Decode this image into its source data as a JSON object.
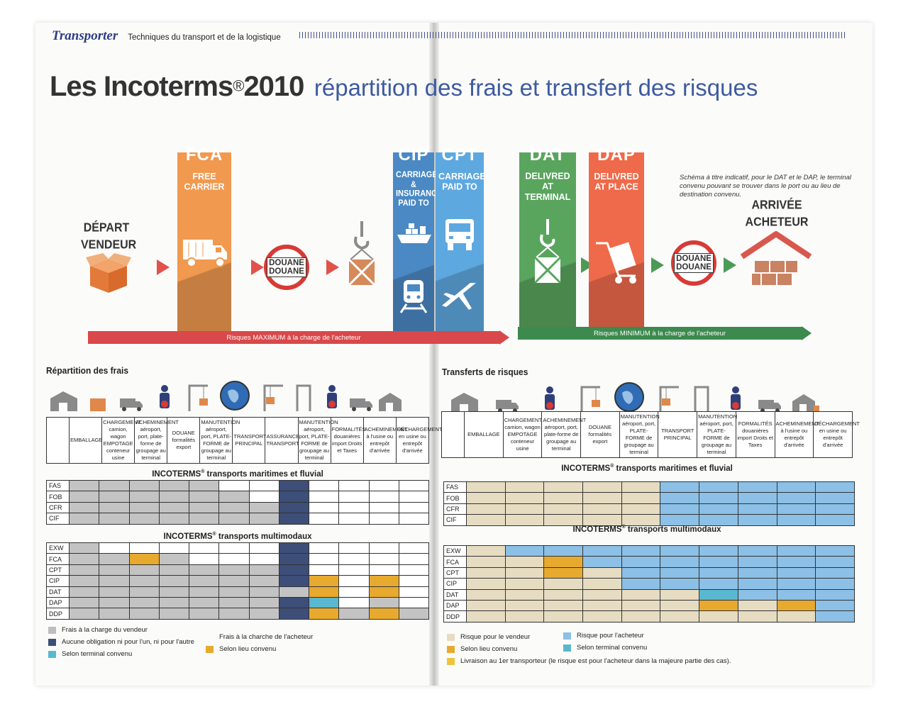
{
  "magazine": {
    "name": "Transporter",
    "section": "Techniques du transport et de la logistique"
  },
  "headline": {
    "main": "Les Incoterms",
    "reg": "®",
    "year": "2010",
    "sub": "répartition des frais et transfert des risques"
  },
  "terms": [
    {
      "code": "FCA",
      "full": "FREE CARRIER",
      "color": "#f0994f"
    },
    {
      "code": "CIP",
      "full": "CARRIAGE & INSURANCE PAID TO",
      "color": "#4a89c4"
    },
    {
      "code": "CPT",
      "full": "CARRIAGE PAID TO",
      "color": "#5ea8e0"
    },
    {
      "code": "DAT",
      "full": "DELIVRED AT TERMINAL",
      "color": "#5aa55e"
    },
    {
      "code": "DAP",
      "full": "DELIVRED AT PLACE",
      "color": "#ef6a4a"
    }
  ],
  "parties": {
    "depart": "DÉPART VENDEUR",
    "arrivee": "ARRIVÉE ACHETEUR"
  },
  "douane_label": "DOUANE DOUANE",
  "note": "Schéma à titre indicatif, pour le DAT et le DAP, le terminal convenu pouvant se trouver dans le port ou au lieu de destination convenu.",
  "risk_bars": {
    "maximum": "Risques MAXIMUM à la charge de l'acheteur",
    "minimum": "Risques MINIMUM à la charge de l'acheteur"
  },
  "icons": [
    "box-icon",
    "truck-icon",
    "crane-hook-icon",
    "ship-icon",
    "truck-front-icon",
    "train-icon",
    "plane-icon",
    "trolley-icon",
    "warehouse-icon",
    "globe-transports-icon",
    "customs-officer-icon"
  ],
  "frais": {
    "title": "Répartition des frais",
    "headers": [
      "",
      "EMBALLAGE",
      "CHARGEMENT camion, wagon EMPOTAGE conteneur usine",
      "ACHEMINEMENT aéroport, port, plate-forme de groupage au terminal",
      "DOUANE formalités export",
      "MANUTENTION aéroport, port, PLATE-FORME de groupage au terminal",
      "TRANSPORT PRINCIPAL",
      "ASSURANCE TRANSPORT",
      "MANUTENTION aéroport, port, PLATE-FORME de groupage au terminal",
      "FORMALITÉS douanières import Droits et Taxes",
      "ACHEMINEMENT à l'usine ou entrepôt d'arrivée",
      "DÉCHARGEMENT en usine ou entrepôt d'arrivée"
    ],
    "group_maritime": "INCOTERMS",
    "group_maritime_rest": " transports maritimes et fluvial",
    "group_multi": "INCOTERMS",
    "group_multi_rest": " transports multimodaux",
    "maritime_rows": [
      {
        "code": "FAS",
        "cells": [
          "g",
          "g",
          "g",
          "g",
          "g",
          "w",
          "w",
          "n",
          "w",
          "w",
          "w",
          "w"
        ]
      },
      {
        "code": "FOB",
        "cells": [
          "g",
          "g",
          "g",
          "g",
          "g",
          "g",
          "w",
          "n",
          "w",
          "w",
          "w",
          "w"
        ]
      },
      {
        "code": "CFR",
        "cells": [
          "g",
          "g",
          "g",
          "g",
          "g",
          "g",
          "g",
          "n",
          "w",
          "w",
          "w",
          "w"
        ]
      },
      {
        "code": "CIF",
        "cells": [
          "g",
          "g",
          "g",
          "g",
          "g",
          "g",
          "g",
          "n",
          "w",
          "w",
          "w",
          "w"
        ]
      }
    ],
    "multi_rows": [
      {
        "code": "EXW",
        "cells": [
          "g",
          "w",
          "w",
          "w",
          "w",
          "w",
          "w",
          "n",
          "w",
          "w",
          "w",
          "w"
        ]
      },
      {
        "code": "FCA",
        "cells": [
          "g",
          "g",
          "o",
          "g",
          "w",
          "w",
          "w",
          "n",
          "w",
          "w",
          "w",
          "w"
        ]
      },
      {
        "code": "CPT",
        "cells": [
          "g",
          "g",
          "g",
          "g",
          "g",
          "g",
          "g",
          "n",
          "w",
          "w",
          "w",
          "w"
        ]
      },
      {
        "code": "CIP",
        "cells": [
          "g",
          "g",
          "g",
          "g",
          "g",
          "g",
          "g",
          "n",
          "o",
          "w",
          "o",
          "w"
        ]
      },
      {
        "code": "DAT",
        "cells": [
          "g",
          "g",
          "g",
          "g",
          "g",
          "g",
          "g",
          "g",
          "o",
          "w",
          "o",
          "w"
        ]
      },
      {
        "code": "DAP",
        "cells": [
          "g",
          "g",
          "g",
          "g",
          "g",
          "g",
          "g",
          "n",
          "c",
          "w",
          "g",
          "w"
        ]
      },
      {
        "code": "DDP",
        "cells": [
          "g",
          "g",
          "g",
          "g",
          "g",
          "g",
          "g",
          "n",
          "o",
          "g",
          "o",
          "g"
        ]
      }
    ],
    "legend": [
      {
        "color": "#bdbdbd",
        "label": "Frais à la charge du vendeur"
      },
      {
        "color": "#3d4e78",
        "label": "Aucune obligation ni pour l'un, ni pour l'autre"
      },
      {
        "color": "#59b8cf",
        "label": "Selon terminal convenu"
      },
      {
        "color": "#ffffff",
        "label": "Frais à la charche de l'acheteur"
      },
      {
        "color": "#e7aa2f",
        "label": "Selon lieu convenu"
      }
    ]
  },
  "risques": {
    "title": "Transferts de risques",
    "headers": [
      "",
      "EMBALLAGE",
      "CHARGEMENT camion, wagon EMPOTAGE conteneur usine",
      "ACHEMINEMENT aéroport, port, plate-forme de groupage au terminal",
      "DOUANE formalités export",
      "MANUTENTION aéroport, port, PLATE-FORME de groupage au terminal",
      "TRANSPORT PRINCIPAL",
      "MANUTENTION aéroport, port, PLATE-FORME de groupage au terminal",
      "FORMALITÉS douanières import Droits et Taxes",
      "ACHEMINEMENT à l'usine ou entrepôt d'arrivée",
      "DÉCHARGEMENT en usine ou entrepôt d'arrivée"
    ],
    "maritime_rows": [
      {
        "code": "FAS",
        "cells": [
          "b",
          "b",
          "b",
          "b",
          "b",
          "l",
          "l",
          "l",
          "l",
          "l"
        ]
      },
      {
        "code": "FOB",
        "cells": [
          "b",
          "b",
          "b",
          "b",
          "b",
          "l",
          "l",
          "l",
          "l",
          "l"
        ]
      },
      {
        "code": "CFR",
        "cells": [
          "b",
          "b",
          "b",
          "b",
          "b",
          "l",
          "l",
          "l",
          "l",
          "l"
        ]
      },
      {
        "code": "CIF",
        "cells": [
          "b",
          "b",
          "b",
          "b",
          "b",
          "l",
          "l",
          "l",
          "l",
          "l"
        ]
      }
    ],
    "multi_rows": [
      {
        "code": "EXW",
        "cells": [
          "b",
          "l",
          "l",
          "l",
          "l",
          "l",
          "l",
          "l",
          "l",
          "l"
        ]
      },
      {
        "code": "FCA",
        "cells": [
          "b",
          "b",
          "o",
          "l",
          "l",
          "l",
          "l",
          "l",
          "l",
          "l"
        ]
      },
      {
        "code": "CPT",
        "cells": [
          "b",
          "b",
          "o",
          "b",
          "l",
          "l",
          "l",
          "l",
          "l",
          "l"
        ]
      },
      {
        "code": "CIP",
        "cells": [
          "b",
          "b",
          "b",
          "b",
          "l",
          "l",
          "l",
          "l",
          "l",
          "l"
        ]
      },
      {
        "code": "DAT",
        "cells": [
          "b",
          "b",
          "b",
          "b",
          "b",
          "b",
          "c",
          "l",
          "l",
          "l"
        ]
      },
      {
        "code": "DAP",
        "cells": [
          "b",
          "b",
          "b",
          "b",
          "b",
          "b",
          "o",
          "b",
          "o",
          "l"
        ]
      },
      {
        "code": "DDP",
        "cells": [
          "b",
          "b",
          "b",
          "b",
          "b",
          "b",
          "b",
          "b",
          "b",
          "l"
        ]
      }
    ],
    "legend": [
      {
        "color": "#e6dcc2",
        "label": "Risque pour le vendeur"
      },
      {
        "color": "#e7aa2f",
        "label": "Selon lieu convenu"
      },
      {
        "color": "#f0c23e",
        "label": "Livraison au 1er transporteur (le risque est pour l'acheteur dans la majeure partie des cas)."
      },
      {
        "color": "#8cc0e6",
        "label": "Risque pour l'acheteur"
      },
      {
        "color": "#59b8cf",
        "label": "Selon terminal convenu"
      }
    ]
  },
  "colors": {
    "g": "#c3c3c3",
    "w": "#ffffff",
    "n": "#3d4e78",
    "o": "#e7aa2f",
    "c": "#59b8cf",
    "b": "#e6dcc2",
    "l": "#8cc0e6"
  }
}
